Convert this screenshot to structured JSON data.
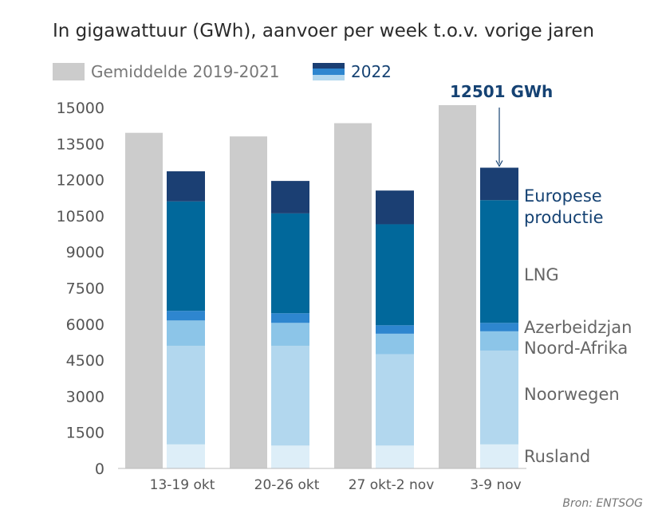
{
  "title": "In gigawattuur (GWh), aanvoer per week t.o.v. vorige jaren",
  "source": "Bron: ENTSOG",
  "annotation": "12501 GWh",
  "legend": {
    "avg_label": "Gemiddelde 2019-2021",
    "current_label": "2022"
  },
  "colors": {
    "avg": "#cccccc",
    "Rusland": "#ddeef8",
    "Noorwegen": "#b2d7ee",
    "Noord-Afrika": "#8cc5e8",
    "Azerbeidzjan": "#2e86cf",
    "LNG": "#01689b",
    "Europese productie": "#1b3f73",
    "axis_text": "#555555",
    "label_text": "#666666",
    "accent_text": "#154273"
  },
  "chart_data": {
    "type": "bar",
    "categories": [
      "13-19 okt",
      "20-26 okt",
      "27 okt-2 nov",
      "3-9 nov"
    ],
    "ylim": [
      0,
      15000
    ],
    "yticks": [
      0,
      1500,
      3000,
      4500,
      6000,
      7500,
      9000,
      10500,
      12000,
      13500,
      15000
    ],
    "grid": false,
    "average": {
      "name": "Gemiddelde 2019-2021",
      "values": [
        13950,
        13800,
        14350,
        15100
      ]
    },
    "stacked_series": [
      {
        "name": "Rusland",
        "values": [
          1000,
          950,
          950,
          1000
        ]
      },
      {
        "name": "Noorwegen",
        "values": [
          4100,
          4150,
          3800,
          3900
        ]
      },
      {
        "name": "Noord-Afrika",
        "values": [
          1050,
          950,
          850,
          800
        ]
      },
      {
        "name": "Azerbeidzjan",
        "values": [
          400,
          400,
          350,
          350
        ]
      },
      {
        "name": "LNG",
        "values": [
          4550,
          4150,
          4200,
          5100
        ]
      },
      {
        "name": "Europese productie",
        "values": [
          1250,
          1350,
          1400,
          1350
        ]
      }
    ],
    "series_labels": [
      "Europese productie",
      "LNG",
      "Azerbeidzjan",
      "Noord-Afrika",
      "Noorwegen",
      "Rusland"
    ]
  }
}
